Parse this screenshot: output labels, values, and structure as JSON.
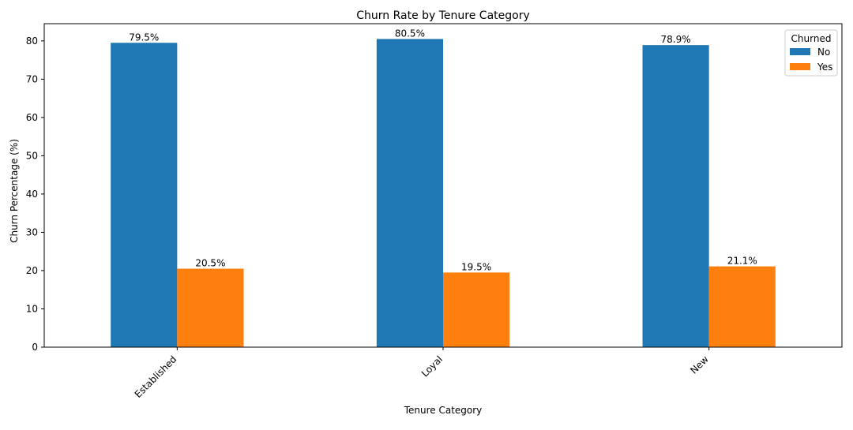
{
  "chart_data": {
    "type": "bar",
    "title": "Churn Rate by Tenure Category",
    "xlabel": "Tenure Category",
    "ylabel": "Churn Percentage (%)",
    "categories": [
      "Established",
      "Loyal",
      "New"
    ],
    "series": [
      {
        "name": "No",
        "color": "#1f77b4",
        "values": [
          79.5,
          80.5,
          78.9
        ],
        "labels": [
          "79.5%",
          "80.5%",
          "78.9%"
        ]
      },
      {
        "name": "Yes",
        "color": "#ff7f0e",
        "values": [
          20.5,
          19.5,
          21.1
        ],
        "labels": [
          "20.5%",
          "19.5%",
          "21.1%"
        ]
      }
    ],
    "ylim": [
      0,
      84.5
    ],
    "yticks": [
      0,
      10,
      20,
      30,
      40,
      50,
      60,
      70,
      80
    ],
    "ytick_labels": [
      "0",
      "10",
      "20",
      "30",
      "40",
      "50",
      "60",
      "70",
      "80"
    ],
    "xtick_rotation": "45deg",
    "grid": false,
    "legend": {
      "title": "Churned",
      "placement": "top-right"
    }
  }
}
